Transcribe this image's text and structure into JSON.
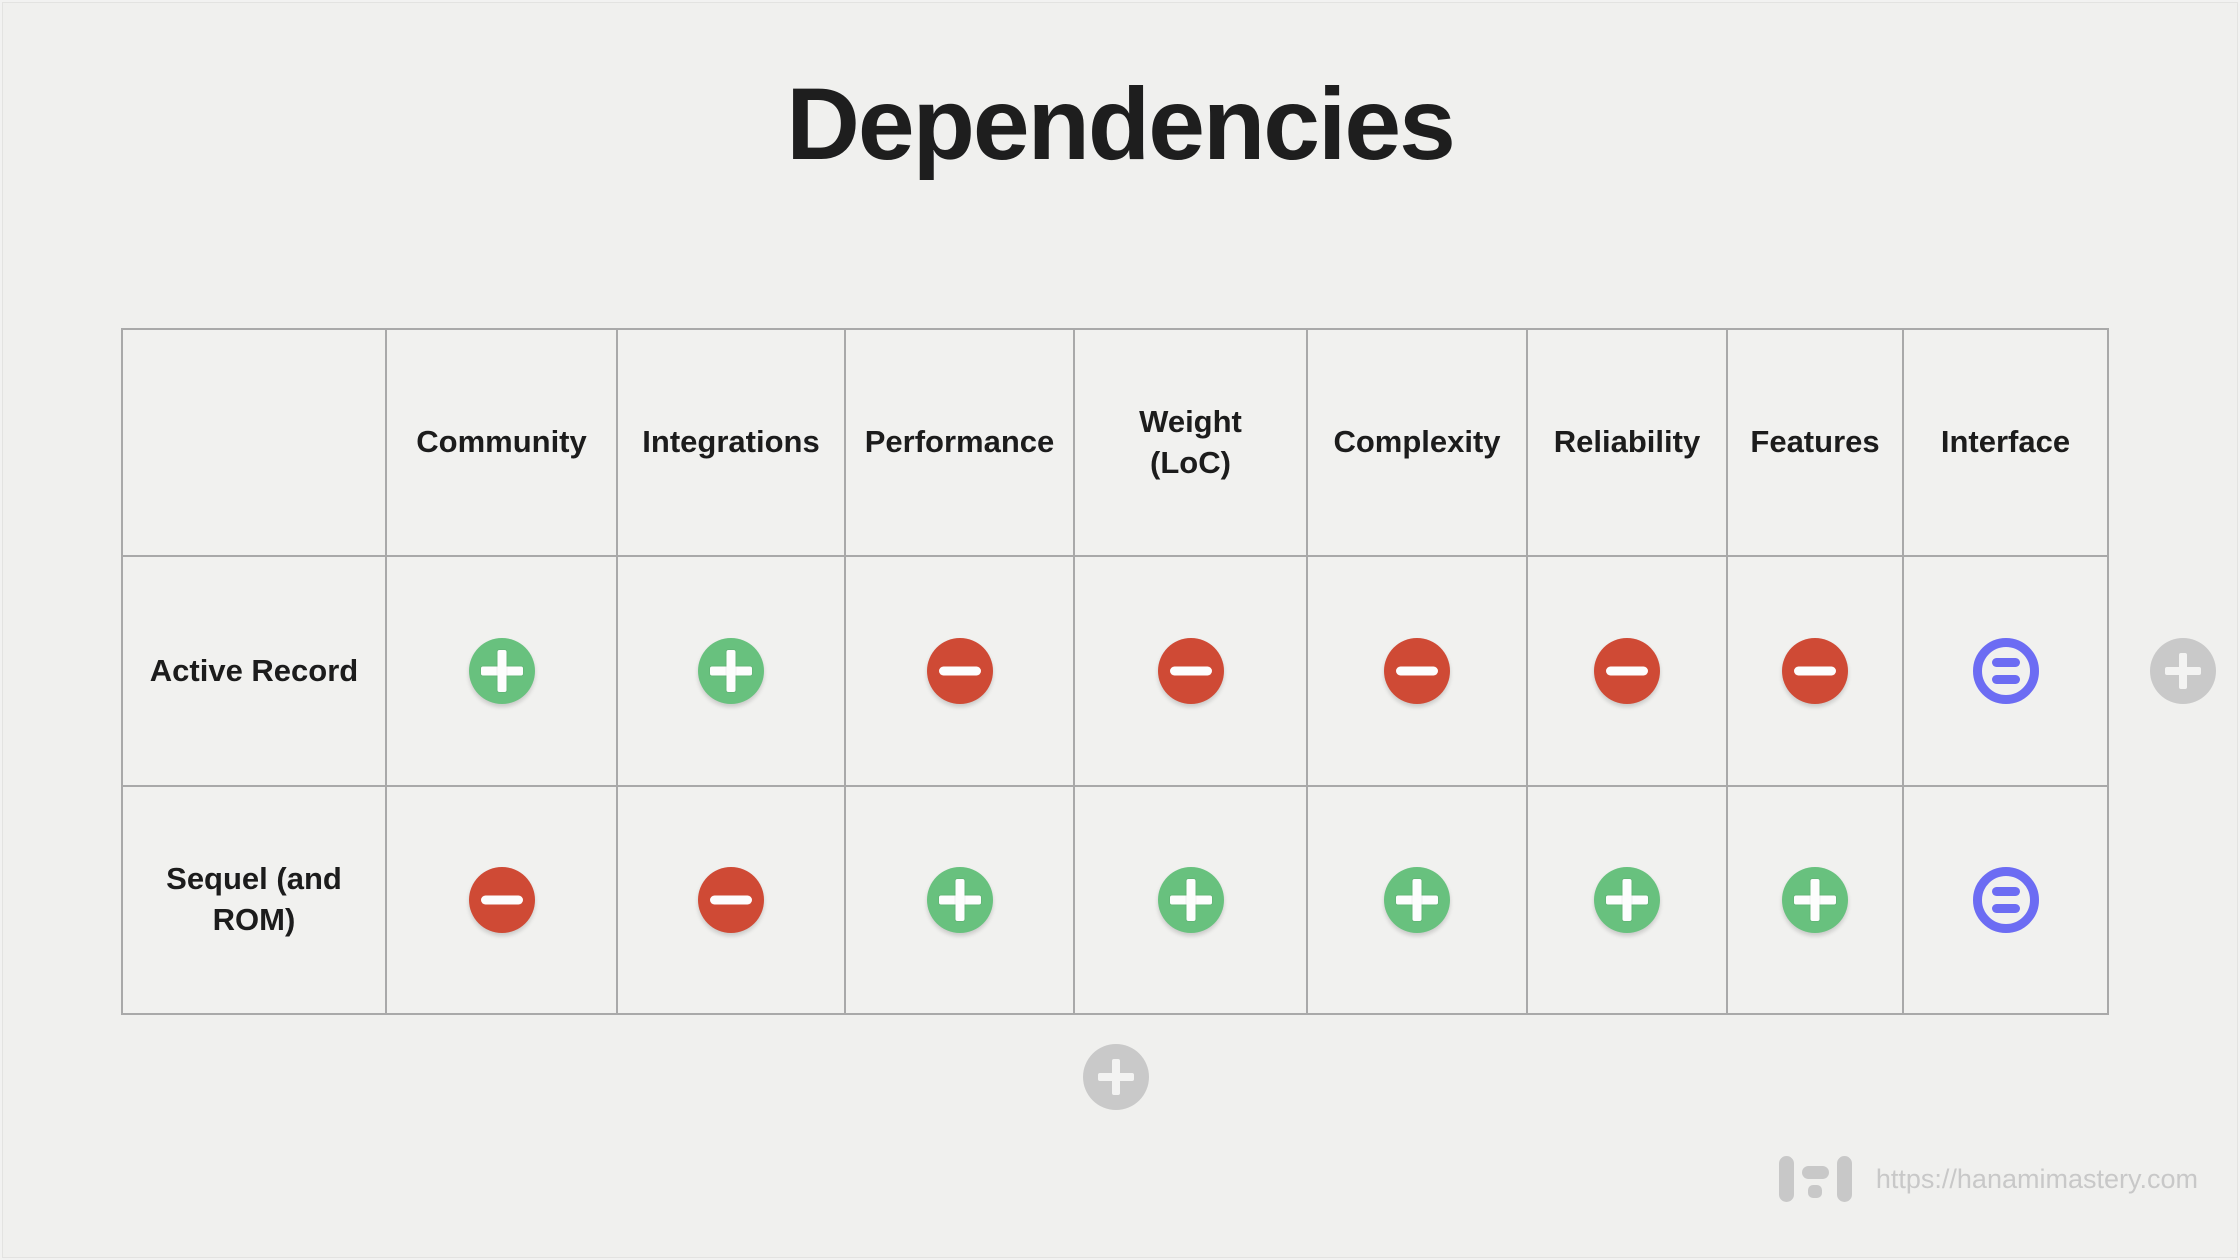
{
  "title": "Dependencies",
  "table": {
    "columns": [
      "",
      "Community",
      "Integrations",
      "Performance",
      "Weight (LoC)",
      "Complexity",
      "Reliability",
      "Features",
      "Interface"
    ],
    "rows": [
      {
        "label": "Active Record",
        "cells": [
          "plus",
          "plus",
          "minus",
          "minus",
          "minus",
          "minus",
          "minus",
          "equals"
        ]
      },
      {
        "label": "Sequel (and ROM)",
        "cells": [
          "minus",
          "minus",
          "plus",
          "plus",
          "plus",
          "plus",
          "plus",
          "equals"
        ]
      }
    ]
  },
  "controls": {
    "add_column_icon": "plus",
    "add_row_icon": "plus"
  },
  "watermark": {
    "url": "https://hanamimastery.com",
    "logo": "hanami-mastery-logo"
  },
  "colors": {
    "background": "#f0f0ee",
    "cell_background": "#f1f1ef",
    "grid_line": "#a9a9a9",
    "text": "#1c1c1c",
    "positive_green": "#68c17e",
    "negative_red": "#cf4a35",
    "neutral_blue": "#6c6cf3",
    "add_button_gray": "#c9c9c9",
    "watermark_gray": "#c8c8c8"
  }
}
